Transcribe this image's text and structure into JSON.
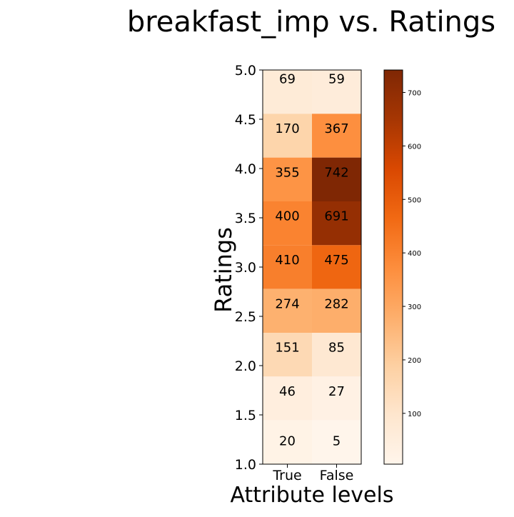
{
  "chart_data": {
    "type": "heatmap",
    "title": "breakfast_imp vs. Ratings",
    "xlabel": "Attribute levels",
    "ylabel": "Ratings",
    "x_categories": [
      "True",
      "False"
    ],
    "y_ticks": [
      "1.0",
      "1.5",
      "2.0",
      "2.5",
      "3.0",
      "3.5",
      "4.0",
      "4.5",
      "5.0"
    ],
    "y_levels": [
      5.0,
      4.5,
      4.0,
      3.5,
      3.0,
      2.5,
      2.0,
      1.5,
      1.0
    ],
    "values": [
      [
        69,
        59
      ],
      [
        170,
        367
      ],
      [
        355,
        742
      ],
      [
        400,
        691
      ],
      [
        410,
        475
      ],
      [
        274,
        282
      ],
      [
        151,
        85
      ],
      [
        46,
        27
      ],
      [
        20,
        5
      ]
    ],
    "colorbar": {
      "colormap": "Oranges",
      "min": 5,
      "max": 742,
      "ticks": [
        "100",
        "200",
        "300",
        "400",
        "500",
        "600",
        "700"
      ],
      "tick_values": [
        100,
        200,
        300,
        400,
        500,
        600,
        700
      ]
    },
    "grid": false
  }
}
